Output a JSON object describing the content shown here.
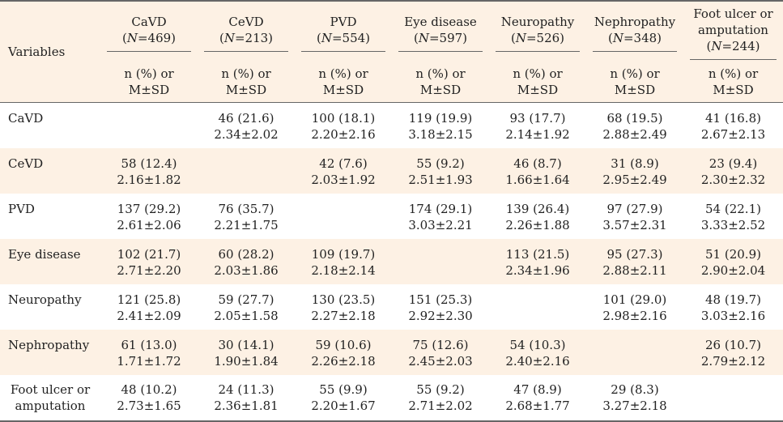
{
  "table": {
    "variables_label": "Variables",
    "columns": [
      {
        "name": "CaVD",
        "n_label": "N",
        "n_value": "=469)",
        "sub": [
          "n (%) or",
          "M±SD"
        ]
      },
      {
        "name": "CeVD",
        "n_label": "N",
        "n_value": "=213)",
        "sub": [
          "n (%) or",
          "M±SD"
        ]
      },
      {
        "name": "PVD",
        "n_label": "N",
        "n_value": "=554)",
        "sub": [
          "n (%) or",
          "M±SD"
        ]
      },
      {
        "name": "Eye disease",
        "n_label": "N",
        "n_value": "=597)",
        "sub": [
          "n (%) or",
          "M±SD"
        ]
      },
      {
        "name": "Neuropathy",
        "n_label": "N",
        "n_value": "=526)",
        "sub": [
          "n (%) or",
          "M±SD"
        ]
      },
      {
        "name": "Nephropathy",
        "n_label": "N",
        "n_value": "=348)",
        "sub": [
          "n (%) or",
          "M±SD"
        ]
      },
      {
        "name": "Foot ulcer or amputation",
        "n_label": "N",
        "n_value": "=244)",
        "sub": [
          "n (%) or",
          "M±SD"
        ]
      }
    ],
    "rows": [
      {
        "label": [
          "CaVD"
        ],
        "cells": [
          [
            "",
            ""
          ],
          [
            "46 (21.6)",
            "2.34±2.02"
          ],
          [
            "100 (18.1)",
            "2.20±2.16"
          ],
          [
            "119 (19.9)",
            "3.18±2.15"
          ],
          [
            "93 (17.7)",
            "2.14±1.92"
          ],
          [
            "68 (19.5)",
            "2.88±2.49"
          ],
          [
            "41 (16.8)",
            "2.67±2.13"
          ]
        ]
      },
      {
        "label": [
          "CeVD"
        ],
        "cells": [
          [
            "58 (12.4)",
            "2.16±1.82"
          ],
          [
            "",
            ""
          ],
          [
            "42 (7.6)",
            "2.03±1.92"
          ],
          [
            "55 (9.2)",
            "2.51±1.93"
          ],
          [
            "46 (8.7)",
            "1.66±1.64"
          ],
          [
            "31 (8.9)",
            "2.95±2.49"
          ],
          [
            "23 (9.4)",
            "2.30±2.32"
          ]
        ]
      },
      {
        "label": [
          "PVD"
        ],
        "cells": [
          [
            "137 (29.2)",
            "2.61±2.06"
          ],
          [
            "76 (35.7)",
            "2.21±1.75"
          ],
          [
            "",
            ""
          ],
          [
            "174 (29.1)",
            "3.03±2.21"
          ],
          [
            "139 (26.4)",
            "2.26±1.88"
          ],
          [
            "97 (27.9)",
            "3.57±2.31"
          ],
          [
            "54 (22.1)",
            "3.33±2.52"
          ]
        ]
      },
      {
        "label": [
          "Eye disease"
        ],
        "cells": [
          [
            "102 (21.7)",
            "2.71±2.20"
          ],
          [
            "60 (28.2)",
            "2.03±1.86"
          ],
          [
            "109 (19.7)",
            "2.18±2.14"
          ],
          [
            "",
            ""
          ],
          [
            "113 (21.5)",
            "2.34±1.96"
          ],
          [
            "95 (27.3)",
            "2.88±2.11"
          ],
          [
            "51 (20.9)",
            "2.90±2.04"
          ]
        ]
      },
      {
        "label": [
          "Neuropathy"
        ],
        "cells": [
          [
            "121 (25.8)",
            "2.41±2.09"
          ],
          [
            "59 (27.7)",
            "2.05±1.58"
          ],
          [
            "130 (23.5)",
            "2.27±2.18"
          ],
          [
            "151 (25.3)",
            "2.92±2.30"
          ],
          [
            "",
            ""
          ],
          [
            "101 (29.0)",
            "2.98±2.16"
          ],
          [
            "48 (19.7)",
            "3.03±2.16"
          ]
        ]
      },
      {
        "label": [
          "Nephropathy"
        ],
        "cells": [
          [
            "61 (13.0)",
            "1.71±1.72"
          ],
          [
            "30 (14.1)",
            "1.90±1.84"
          ],
          [
            "59 (10.6)",
            "2.26±2.18"
          ],
          [
            "75 (12.6)",
            "2.45±2.03"
          ],
          [
            "54 (10.3)",
            "2.40±2.16"
          ],
          [
            "",
            ""
          ],
          [
            "26 (10.7)",
            "2.79±2.12"
          ]
        ]
      },
      {
        "label": [
          "Foot ulcer or",
          "amputation"
        ],
        "cells": [
          [
            "48 (10.2)",
            "2.73±1.65"
          ],
          [
            "24 (11.3)",
            "2.36±1.81"
          ],
          [
            "55 (9.9)",
            "2.20±1.67"
          ],
          [
            "55 (9.2)",
            "2.71±2.02"
          ],
          [
            "47 (8.9)",
            "2.68±1.77"
          ],
          [
            "29 (8.3)",
            "3.27±2.18"
          ],
          [
            "",
            ""
          ]
        ]
      }
    ]
  },
  "colors": {
    "stripe": "#fdf1e4",
    "rule": "#666666",
    "text": "#222222"
  }
}
